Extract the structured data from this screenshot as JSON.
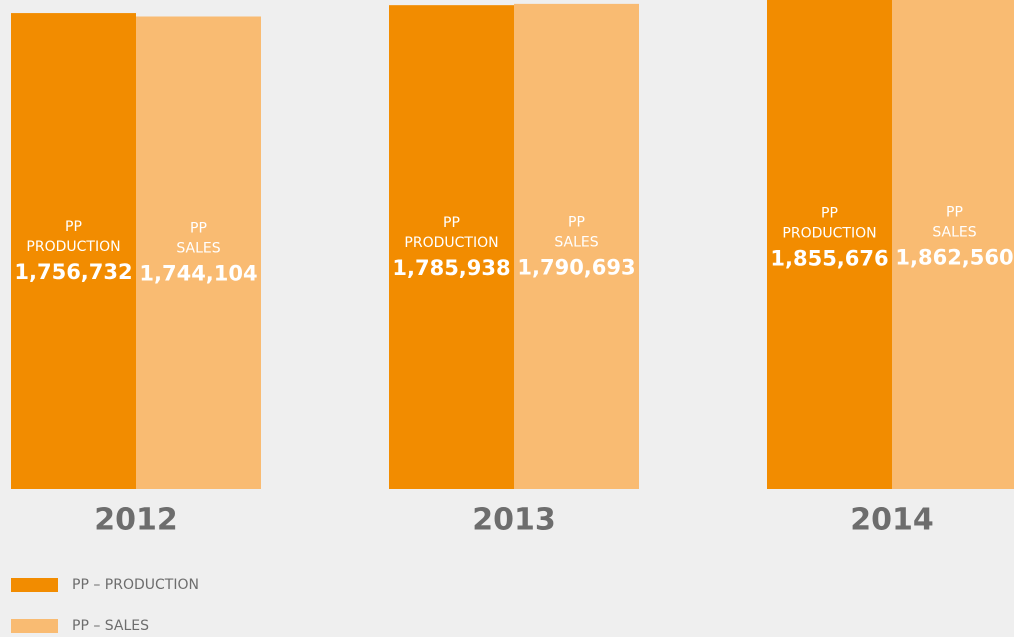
{
  "chart_data": {
    "type": "bar",
    "categories": [
      "2012",
      "2013",
      "2014"
    ],
    "ylim": [
      0,
      1805000
    ],
    "series": [
      {
        "name": "PP – PRODUCTION",
        "bar_label": [
          "PP",
          "PRODUCTION"
        ],
        "color": "#f28c00",
        "values": [
          1756732,
          1785938,
          1855676
        ],
        "value_labels": [
          "1,756,732",
          "1,785,938",
          "1,855,676"
        ]
      },
      {
        "name": "PP – SALES",
        "bar_label": [
          "PP",
          "SALES"
        ],
        "color": "#f9bb72",
        "values": [
          1744104,
          1790693,
          1862560
        ],
        "value_labels": [
          "1,744,104",
          "1,790,693",
          "1,862,560"
        ]
      }
    ]
  }
}
